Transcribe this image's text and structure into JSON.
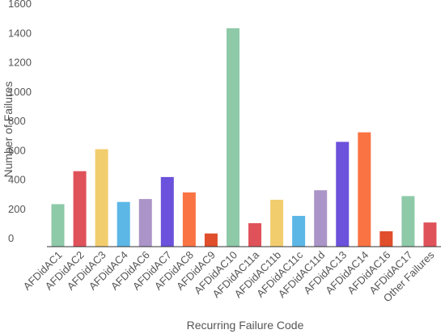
{
  "chart_data": {
    "type": "bar",
    "xlabel": "Recurring Failure Code",
    "ylabel": "Number of Failures",
    "ylim": [
      0,
      1600
    ],
    "yticks": [
      0,
      200,
      400,
      600,
      800,
      1000,
      1200,
      1400,
      1600
    ],
    "grid": false,
    "legend": "none",
    "categories": [
      "AFDidAC1",
      "AFDidAC2",
      "AFDidAC3",
      "AFDidAC4",
      "AFDidAC6",
      "AFDidAC7",
      "AFDidAC8",
      "AFDidAC9",
      "AFDidAC10",
      "AFDidAC11a",
      "AFDidAC11b",
      "AFDidAC11c",
      "AFDidAC11d",
      "AFDidAC13",
      "AFDidAC14",
      "AFDidAC16",
      "AFDidAC17",
      "Other Failures"
    ],
    "values": [
      290,
      515,
      665,
      305,
      325,
      475,
      370,
      90,
      1490,
      160,
      320,
      210,
      385,
      715,
      780,
      105,
      345,
      165
    ],
    "colors": [
      "#8ec9a8",
      "#e0525a",
      "#f2cd6e",
      "#5cb7e6",
      "#ab94c8",
      "#6b51db",
      "#fa7343",
      "#e04e2b",
      "#8ec9a8",
      "#e0525a",
      "#f2cd6e",
      "#5cb7e6",
      "#ab94c8",
      "#6b51db",
      "#fa7343",
      "#e04e2b",
      "#8ec9a8",
      "#e0525a"
    ]
  }
}
